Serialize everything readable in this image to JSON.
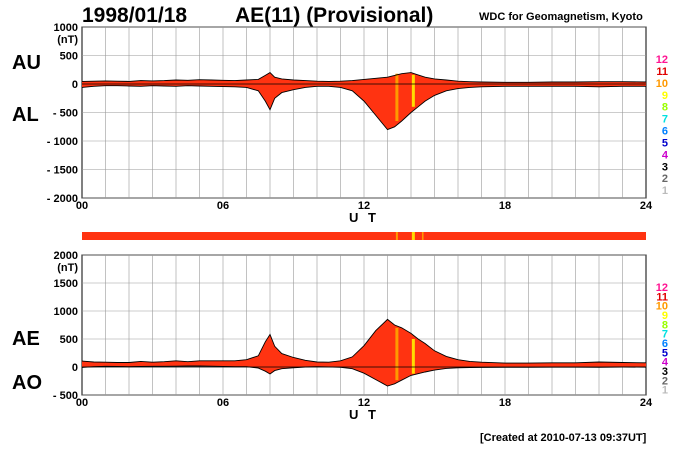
{
  "header": {
    "date": "1998/01/18",
    "title": "AE(11) (Provisional)",
    "org": "WDC for Geomagnetism, Kyoto"
  },
  "footer": {
    "created": "[Created at 2010-07-13 09:37UT]"
  },
  "side_labels": {
    "top_upper": "AU",
    "top_lower": "AL",
    "bottom_upper": "AE",
    "bottom_lower": "AO"
  },
  "unit_label": "(nT)",
  "x_axis_label": "U T",
  "x_ticks": [
    "00",
    "06",
    "12",
    "18",
    "24"
  ],
  "station_numbers": [
    "12",
    "11",
    "10",
    "9",
    "8",
    "7",
    "6",
    "5",
    "4",
    "3",
    "2",
    "1"
  ],
  "station_colors": [
    "#ff1493",
    "#e00000",
    "#ff9900",
    "#ffff00",
    "#99ff00",
    "#00e0e0",
    "#0080ff",
    "#0000cc",
    "#cc00cc",
    "#000000",
    "#666666",
    "#bbbbbb"
  ],
  "colors": {
    "fill": "#ff3311",
    "outline": "#000000",
    "grid": "#999999",
    "bar": "#ff3311",
    "highlight_orange": "#ff9900",
    "highlight_yellow": "#ffdd00"
  },
  "chart_data": [
    {
      "type": "area",
      "x_unit": "hours UT",
      "xlim": [
        0,
        24
      ],
      "ylim": [
        -2000,
        1000
      ],
      "yticks": [
        "1000",
        "500",
        "0",
        "- 500",
        "- 1000",
        "- 1500",
        "- 2000"
      ],
      "ytick_values": [
        1000,
        500,
        0,
        -500,
        -1000,
        -1500,
        -2000
      ],
      "grid": true,
      "series": [
        {
          "name": "AU",
          "x": [
            0,
            0.5,
            1,
            1.5,
            2,
            2.5,
            3,
            3.5,
            4,
            4.5,
            5,
            5.5,
            6,
            6.5,
            7,
            7.5,
            7.8,
            8,
            8.2,
            8.5,
            9,
            9.5,
            10,
            10.5,
            11,
            11.5,
            12,
            12.5,
            13,
            13.3,
            13.6,
            14,
            14.3,
            14.6,
            15,
            15.5,
            16,
            16.5,
            17,
            18,
            19,
            20,
            21,
            22,
            23,
            24
          ],
          "values": [
            45,
            50,
            55,
            50,
            45,
            60,
            55,
            60,
            70,
            65,
            75,
            70,
            65,
            60,
            70,
            80,
            150,
            200,
            120,
            90,
            70,
            60,
            50,
            45,
            50,
            60,
            80,
            100,
            120,
            150,
            180,
            200,
            160,
            120,
            90,
            70,
            50,
            40,
            35,
            30,
            30,
            35,
            35,
            40,
            40,
            35
          ]
        },
        {
          "name": "AL",
          "x": [
            0,
            0.5,
            1,
            1.5,
            2,
            2.5,
            3,
            3.5,
            4,
            4.5,
            5,
            5.5,
            6,
            6.5,
            7,
            7.5,
            7.8,
            8,
            8.2,
            8.5,
            9,
            9.5,
            10,
            10.5,
            11,
            11.5,
            12,
            12.5,
            13,
            13.3,
            13.6,
            14,
            14.3,
            14.6,
            15,
            15.5,
            16,
            16.5,
            17,
            18,
            19,
            20,
            21,
            22,
            23,
            24
          ],
          "values": [
            -60,
            -40,
            -30,
            -30,
            -35,
            -40,
            -30,
            -35,
            -40,
            -30,
            -35,
            -40,
            -45,
            -50,
            -60,
            -120,
            -300,
            -450,
            -250,
            -150,
            -100,
            -60,
            -40,
            -40,
            -60,
            -120,
            -300,
            -550,
            -800,
            -750,
            -650,
            -500,
            -400,
            -300,
            -200,
            -120,
            -80,
            -60,
            -50,
            -40,
            -40,
            -40,
            -40,
            -50,
            -40,
            -40
          ]
        }
      ],
      "highlights": [
        {
          "x": 13.4,
          "color": "orange"
        },
        {
          "x": 14.1,
          "color": "yellow"
        }
      ]
    },
    {
      "type": "area",
      "x_unit": "hours UT",
      "xlim": [
        0,
        24
      ],
      "ylim": [
        -500,
        2000
      ],
      "yticks": [
        "2000",
        "1500",
        "1000",
        "500",
        "0",
        "- 500"
      ],
      "ytick_values": [
        2000,
        1500,
        1000,
        500,
        0,
        -500
      ],
      "grid": true,
      "series": [
        {
          "name": "AE",
          "x": [
            0,
            0.5,
            1,
            1.5,
            2,
            2.5,
            3,
            3.5,
            4,
            4.5,
            5,
            5.5,
            6,
            6.5,
            7,
            7.5,
            7.8,
            8,
            8.2,
            8.5,
            9,
            9.5,
            10,
            10.5,
            11,
            11.5,
            12,
            12.5,
            13,
            13.3,
            13.6,
            14,
            14.3,
            14.6,
            15,
            15.5,
            16,
            16.5,
            17,
            18,
            19,
            20,
            21,
            22,
            23,
            24
          ],
          "values": [
            105,
            90,
            85,
            80,
            80,
            100,
            85,
            95,
            110,
            95,
            110,
            110,
            110,
            110,
            130,
            200,
            450,
            580,
            370,
            240,
            170,
            120,
            90,
            85,
            110,
            180,
            380,
            650,
            850,
            750,
            700,
            600,
            500,
            420,
            290,
            190,
            130,
            100,
            85,
            70,
            70,
            75,
            75,
            90,
            80,
            75
          ]
        },
        {
          "name": "AO",
          "x": [
            0,
            0.5,
            1,
            1.5,
            2,
            2.5,
            3,
            3.5,
            4,
            4.5,
            5,
            5.5,
            6,
            6.5,
            7,
            7.5,
            7.8,
            8,
            8.2,
            8.5,
            9,
            9.5,
            10,
            10.5,
            11,
            11.5,
            12,
            12.5,
            13,
            13.3,
            13.6,
            14,
            14.3,
            14.6,
            15,
            15.5,
            16,
            16.5,
            17,
            18,
            19,
            20,
            21,
            22,
            23,
            24
          ],
          "values": [
            -8,
            5,
            12,
            10,
            5,
            10,
            12,
            12,
            15,
            17,
            20,
            15,
            10,
            5,
            5,
            -20,
            -75,
            -125,
            -65,
            -30,
            -15,
            0,
            5,
            2,
            -5,
            -30,
            -110,
            -225,
            -340,
            -300,
            -235,
            -150,
            -120,
            -90,
            -55,
            -25,
            -15,
            -10,
            -8,
            -5,
            -5,
            -3,
            -3,
            -5,
            0,
            -3
          ]
        }
      ],
      "highlights": [
        {
          "x": 13.4,
          "color": "orange"
        },
        {
          "x": 14.1,
          "color": "yellow"
        }
      ]
    }
  ]
}
